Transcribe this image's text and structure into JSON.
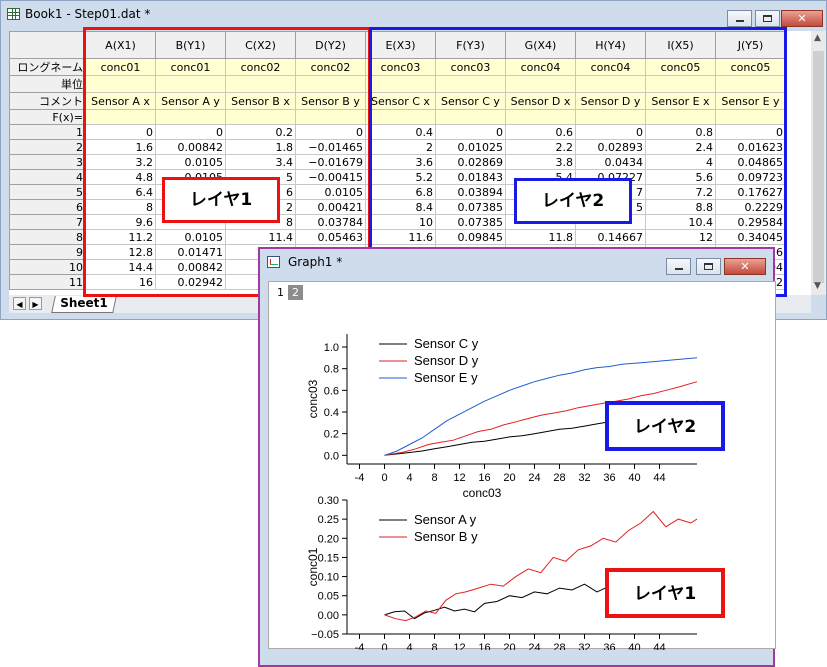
{
  "book": {
    "title": "Book1 - Step01.dat *",
    "row_labels": {
      "long_name": "ロングネーム",
      "units": "単位",
      "comments": "コメント",
      "formula": "F(x)="
    },
    "columns": [
      {
        "header": "A(X1)",
        "long_name": "conc01",
        "comment": "Sensor A x"
      },
      {
        "header": "B(Y1)",
        "long_name": "conc01",
        "comment": "Sensor A y"
      },
      {
        "header": "C(X2)",
        "long_name": "conc02",
        "comment": "Sensor B x"
      },
      {
        "header": "D(Y2)",
        "long_name": "conc02",
        "comment": "Sensor B y"
      },
      {
        "header": "E(X3)",
        "long_name": "conc03",
        "comment": "Sensor C x"
      },
      {
        "header": "F(Y3)",
        "long_name": "conc03",
        "comment": "Sensor C y"
      },
      {
        "header": "G(X4)",
        "long_name": "conc04",
        "comment": "Sensor D x"
      },
      {
        "header": "H(Y4)",
        "long_name": "conc04",
        "comment": "Sensor D y"
      },
      {
        "header": "I(X5)",
        "long_name": "conc05",
        "comment": "Sensor E x"
      },
      {
        "header": "J(Y5)",
        "long_name": "conc05",
        "comment": "Sensor E y"
      }
    ],
    "rows": [
      {
        "n": "1",
        "cells": [
          "0",
          "0",
          "0.2",
          "0",
          "0.4",
          "0",
          "0.6",
          "0",
          "0.8",
          "0"
        ]
      },
      {
        "n": "2",
        "cells": [
          "1.6",
          "0.00842",
          "1.8",
          "−0.01465",
          "2",
          "0.01025",
          "2.2",
          "0.02893",
          "2.4",
          "0.01623"
        ]
      },
      {
        "n": "3",
        "cells": [
          "3.2",
          "0.0105",
          "3.4",
          "−0.01679",
          "3.6",
          "0.02869",
          "3.8",
          "0.0434",
          "4",
          "0.04865"
        ]
      },
      {
        "n": "4",
        "cells": [
          "4.8",
          "−0.0105",
          "5",
          "−0.00415",
          "5.2",
          "0.01843",
          "5.4",
          "0.07227",
          "5.6",
          "0.09723"
        ]
      },
      {
        "n": "5",
        "cells": [
          "6.4",
          "",
          "6",
          "0.0105",
          "6.8",
          "0.03894",
          "",
          "7",
          "7.2",
          "0.17627"
        ]
      },
      {
        "n": "6",
        "cells": [
          "8",
          "",
          "2",
          "0.00421",
          "8.4",
          "0.07385",
          "",
          "5",
          "8.8",
          "0.2229"
        ]
      },
      {
        "n": "7",
        "cells": [
          "9.6",
          "",
          "8",
          "0.03784",
          "10",
          "0.07385",
          "",
          "",
          "10.4",
          "0.29584"
        ]
      },
      {
        "n": "8",
        "cells": [
          "11.2",
          "0.0105",
          "11.4",
          "0.05463",
          "11.6",
          "0.09845",
          "11.8",
          "0.14667",
          "12",
          "0.34045"
        ]
      },
      {
        "n": "9",
        "cells": [
          "12.8",
          "0.01471",
          "",
          "",
          "",
          "",
          "",
          "",
          "",
          "56"
        ]
      },
      {
        "n": "10",
        "cells": [
          "14.4",
          "0.00842",
          "",
          "",
          "",
          "",
          "",
          "",
          "",
          "04"
        ]
      },
      {
        "n": "11",
        "cells": [
          "16",
          "0.02942",
          "",
          "",
          "",
          "",
          "",
          "",
          "",
          "52"
        ]
      }
    ],
    "sheet_tab": "Sheet1",
    "layer1_label": "レイヤ1",
    "layer2_label": "レイヤ2"
  },
  "graph": {
    "title": "Graph1 *",
    "layer_tabs": [
      "1",
      "2"
    ],
    "layer2_label": "レイヤ2",
    "layer1_label": "レイヤ1"
  },
  "colors": {
    "layer1_box": "#ee1111",
    "layer2_box": "#1a1ae6",
    "graph_window_border": "#a03aa0",
    "sensor_black": "#000000",
    "sensor_red": "#e02020",
    "sensor_blue": "#1f5fd0"
  },
  "chart_data": [
    {
      "type": "line",
      "layer": "2",
      "xlabel": "conc03",
      "ylabel": "conc03",
      "xticks": [
        "-4",
        "0",
        "4",
        "8",
        "12",
        "16",
        "20",
        "24",
        "28",
        "32",
        "36",
        "40",
        "44"
      ],
      "yticks": [
        "0.0",
        "0.2",
        "0.4",
        "0.6",
        "0.8",
        "1.0"
      ],
      "xlim": [
        -6,
        50
      ],
      "ylim": [
        -0.08,
        1.12
      ],
      "legend": "top-left",
      "series": [
        {
          "name": "Sensor C y",
          "color": "#000000",
          "x": [
            0,
            3,
            6,
            8,
            10,
            12,
            14,
            16,
            18,
            20,
            22,
            24,
            26,
            28,
            30,
            32,
            34,
            36,
            38,
            40,
            42,
            44,
            46,
            48,
            50
          ],
          "y": [
            0,
            0.02,
            0.04,
            0.06,
            0.08,
            0.1,
            0.12,
            0.13,
            0.15,
            0.17,
            0.18,
            0.2,
            0.22,
            0.24,
            0.25,
            0.27,
            0.29,
            0.31,
            0.33,
            0.34,
            0.36,
            0.38,
            0.43,
            0.46,
            0.5
          ]
        },
        {
          "name": "Sensor D y",
          "color": "#e02020",
          "x": [
            0,
            3,
            5,
            7,
            9,
            11,
            13,
            15,
            17,
            19,
            21,
            23,
            25,
            27,
            29,
            31,
            33,
            35,
            37,
            39,
            41,
            43,
            45,
            47,
            50
          ],
          "y": [
            0,
            0.03,
            0.06,
            0.1,
            0.12,
            0.14,
            0.18,
            0.22,
            0.24,
            0.28,
            0.31,
            0.34,
            0.37,
            0.39,
            0.41,
            0.44,
            0.46,
            0.48,
            0.5,
            0.52,
            0.55,
            0.57,
            0.6,
            0.63,
            0.68
          ]
        },
        {
          "name": "Sensor E y",
          "color": "#1f5fd0",
          "x": [
            0,
            2,
            4,
            6,
            8,
            10,
            12,
            14,
            16,
            18,
            20,
            22,
            24,
            26,
            28,
            30,
            32,
            34,
            36,
            38,
            40,
            42,
            44,
            46,
            48,
            50
          ],
          "y": [
            0,
            0.04,
            0.1,
            0.16,
            0.24,
            0.32,
            0.38,
            0.44,
            0.5,
            0.55,
            0.6,
            0.64,
            0.68,
            0.71,
            0.74,
            0.76,
            0.79,
            0.81,
            0.82,
            0.84,
            0.85,
            0.86,
            0.87,
            0.88,
            0.89,
            0.9
          ]
        }
      ]
    },
    {
      "type": "line",
      "layer": "1",
      "xlabel": "conc01",
      "ylabel": "conc01",
      "xticks": [
        "-4",
        "0",
        "4",
        "8",
        "12",
        "16",
        "20",
        "24",
        "28",
        "32",
        "36",
        "40",
        "44"
      ],
      "yticks": [
        "−0.05",
        "0.00",
        "0.05",
        "0.10",
        "0.15",
        "0.20",
        "0.25",
        "0.30"
      ],
      "xlim": [
        -6,
        50
      ],
      "ylim": [
        -0.05,
        0.3
      ],
      "legend": "top-left",
      "series": [
        {
          "name": "Sensor A y",
          "color": "#000000",
          "x": [
            0,
            1.6,
            3.2,
            4.8,
            6.4,
            8,
            9.6,
            11.2,
            12.8,
            14.4,
            16,
            18,
            20,
            22,
            24,
            26,
            28,
            30,
            32,
            34,
            36,
            38,
            40,
            42,
            44,
            46,
            48,
            50
          ],
          "y": [
            0,
            0.008,
            0.01,
            -0.01,
            0.005,
            0.012,
            0.02,
            0.01,
            0.015,
            0.008,
            0.03,
            0.035,
            0.05,
            0.045,
            0.06,
            0.055,
            0.07,
            0.065,
            0.08,
            0.06,
            0.075,
            0.07,
            0.085,
            0.06,
            0.09,
            0.1,
            0.11,
            0.11
          ]
        },
        {
          "name": "Sensor B y",
          "color": "#e02020",
          "x": [
            0,
            1.8,
            3.4,
            5,
            6.6,
            8.2,
            9.8,
            11.4,
            13,
            15,
            17,
            19,
            21,
            23,
            25,
            27,
            29,
            31,
            33,
            35,
            37,
            39,
            41,
            43,
            45,
            47,
            49,
            50
          ],
          "y": [
            0,
            -0.01,
            -0.015,
            -0.005,
            0.01,
            0.004,
            0.038,
            0.055,
            0.06,
            0.07,
            0.08,
            0.075,
            0.1,
            0.12,
            0.11,
            0.15,
            0.14,
            0.17,
            0.18,
            0.2,
            0.19,
            0.22,
            0.24,
            0.27,
            0.23,
            0.25,
            0.24,
            0.25
          ]
        }
      ]
    }
  ]
}
